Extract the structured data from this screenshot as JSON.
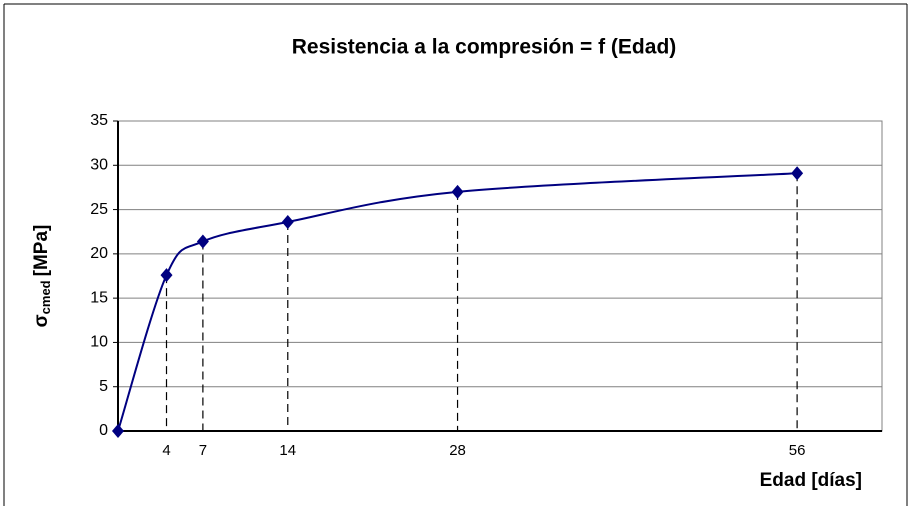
{
  "chart_data": {
    "type": "line",
    "title": "Resistencia a la compresión = f (Edad)",
    "y_label": "σ",
    "y_label_sub": "cmed",
    "y_label_unit": "[MPa]",
    "x_label": "Edad [días]",
    "x": [
      0,
      4,
      7,
      14,
      28,
      56
    ],
    "series": [
      {
        "color": "#000080",
        "values": [
          0,
          17.6,
          21.4,
          23.6,
          27.0,
          29.1
        ]
      }
    ],
    "xlim": [
      0,
      63
    ],
    "ylim": [
      0,
      35
    ],
    "xticks": [
      4,
      7,
      14,
      28,
      56
    ],
    "yticks": [
      0,
      5,
      10,
      15,
      20,
      25,
      30,
      35
    ],
    "grid": true,
    "smooth": true,
    "drop_lines": true
  }
}
